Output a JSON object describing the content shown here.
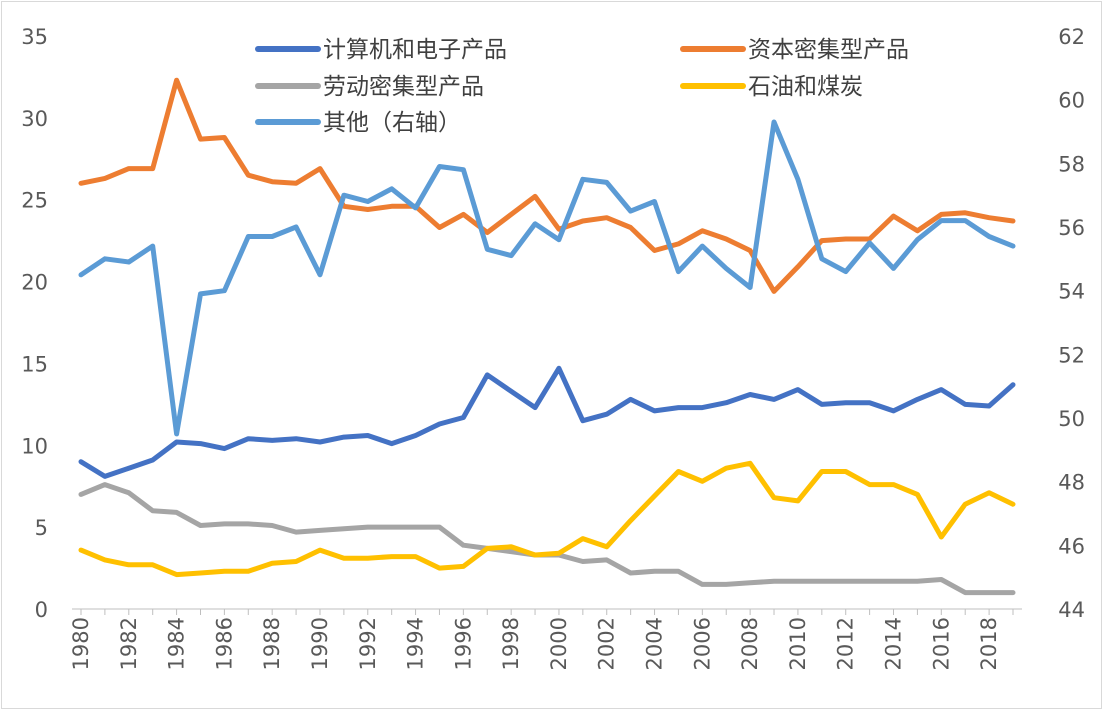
{
  "chart_data": {
    "type": "line",
    "x": [
      1980,
      1981,
      1982,
      1983,
      1984,
      1985,
      1986,
      1987,
      1988,
      1989,
      1990,
      1991,
      1992,
      1993,
      1994,
      1995,
      1996,
      1997,
      1998,
      1999,
      2000,
      2001,
      2002,
      2003,
      2004,
      2005,
      2006,
      2007,
      2008,
      2009,
      2010,
      2011,
      2012,
      2013,
      2014,
      2015,
      2016,
      2017,
      2018,
      2019
    ],
    "x_tick_labels": [
      "1980",
      "1982",
      "1984",
      "1986",
      "1988",
      "1990",
      "1992",
      "1994",
      "1996",
      "1998",
      "2000",
      "2002",
      "2004",
      "2006",
      "2008",
      "2010",
      "2012",
      "2014",
      "2016",
      "2018"
    ],
    "y_left": {
      "ylim": [
        0,
        35
      ],
      "ticks": [
        "0",
        "5",
        "10",
        "15",
        "20",
        "25",
        "30",
        "35"
      ]
    },
    "y_right": {
      "ylim": [
        44,
        62
      ],
      "ticks": [
        "44",
        "46",
        "48",
        "50",
        "52",
        "54",
        "56",
        "58",
        "60",
        "62"
      ]
    },
    "legend_position": "top",
    "series": [
      {
        "name": "计算机和电子产品",
        "axis": "left",
        "color": "#4472c4",
        "values": [
          9.0,
          8.1,
          8.6,
          9.1,
          10.2,
          10.1,
          9.8,
          10.4,
          10.3,
          10.4,
          10.2,
          10.5,
          10.6,
          10.1,
          10.6,
          11.3,
          11.7,
          14.3,
          13.3,
          12.3,
          14.7,
          11.5,
          11.9,
          12.8,
          12.1,
          12.3,
          12.3,
          12.6,
          13.1,
          12.8,
          13.4,
          12.5,
          12.6,
          12.6,
          12.1,
          12.8,
          13.4,
          12.5,
          12.4,
          13.7
        ]
      },
      {
        "name": "资本密集型产品",
        "axis": "left",
        "color": "#ed7d31",
        "values": [
          26.0,
          26.3,
          26.9,
          26.9,
          32.3,
          28.7,
          28.8,
          26.5,
          26.1,
          26.0,
          26.9,
          24.6,
          24.4,
          24.6,
          24.6,
          23.3,
          24.1,
          23.0,
          24.1,
          25.2,
          23.2,
          23.7,
          23.9,
          23.3,
          21.9,
          22.3,
          23.1,
          22.6,
          21.9,
          19.4,
          20.9,
          22.5,
          22.6,
          22.6,
          24.0,
          23.1,
          24.1,
          24.2,
          23.9,
          23.7
        ]
      },
      {
        "name": "劳动密集型产品",
        "axis": "left",
        "color": "#a5a5a5",
        "values": [
          7.0,
          7.6,
          7.1,
          6.0,
          5.9,
          5.1,
          5.2,
          5.2,
          5.1,
          4.7,
          4.8,
          4.9,
          5.0,
          5.0,
          5.0,
          5.0,
          3.9,
          3.7,
          3.5,
          3.3,
          3.3,
          2.9,
          3.0,
          2.2,
          2.3,
          2.3,
          1.5,
          1.5,
          1.6,
          1.7,
          1.7,
          1.7,
          1.7,
          1.7,
          1.7,
          1.7,
          1.8,
          1.0,
          1.0,
          1.0
        ]
      },
      {
        "name": "石油和煤炭",
        "axis": "left",
        "color": "#ffc000",
        "values": [
          3.6,
          3.0,
          2.7,
          2.7,
          2.1,
          2.2,
          2.3,
          2.3,
          2.8,
          2.9,
          3.6,
          3.1,
          3.1,
          3.2,
          3.2,
          2.5,
          2.6,
          3.7,
          3.8,
          3.3,
          3.4,
          4.3,
          3.8,
          5.4,
          6.9,
          8.4,
          7.8,
          8.6,
          8.9,
          6.8,
          6.6,
          8.4,
          8.4,
          7.6,
          7.6,
          7.0,
          4.4,
          6.4,
          7.1,
          6.4
        ]
      },
      {
        "name": "其他（右轴）",
        "axis": "right",
        "color": "#5b9bd5",
        "values": [
          54.5,
          55.0,
          54.9,
          55.4,
          49.5,
          53.9,
          54.0,
          55.7,
          55.7,
          56.0,
          54.5,
          57.0,
          56.8,
          57.2,
          56.6,
          57.9,
          57.8,
          55.3,
          55.1,
          56.1,
          55.6,
          57.5,
          57.4,
          56.5,
          56.8,
          54.6,
          55.4,
          54.7,
          54.1,
          59.3,
          57.5,
          55.0,
          54.6,
          55.5,
          54.7,
          55.6,
          56.2,
          56.2,
          55.7,
          55.4
        ]
      }
    ]
  }
}
